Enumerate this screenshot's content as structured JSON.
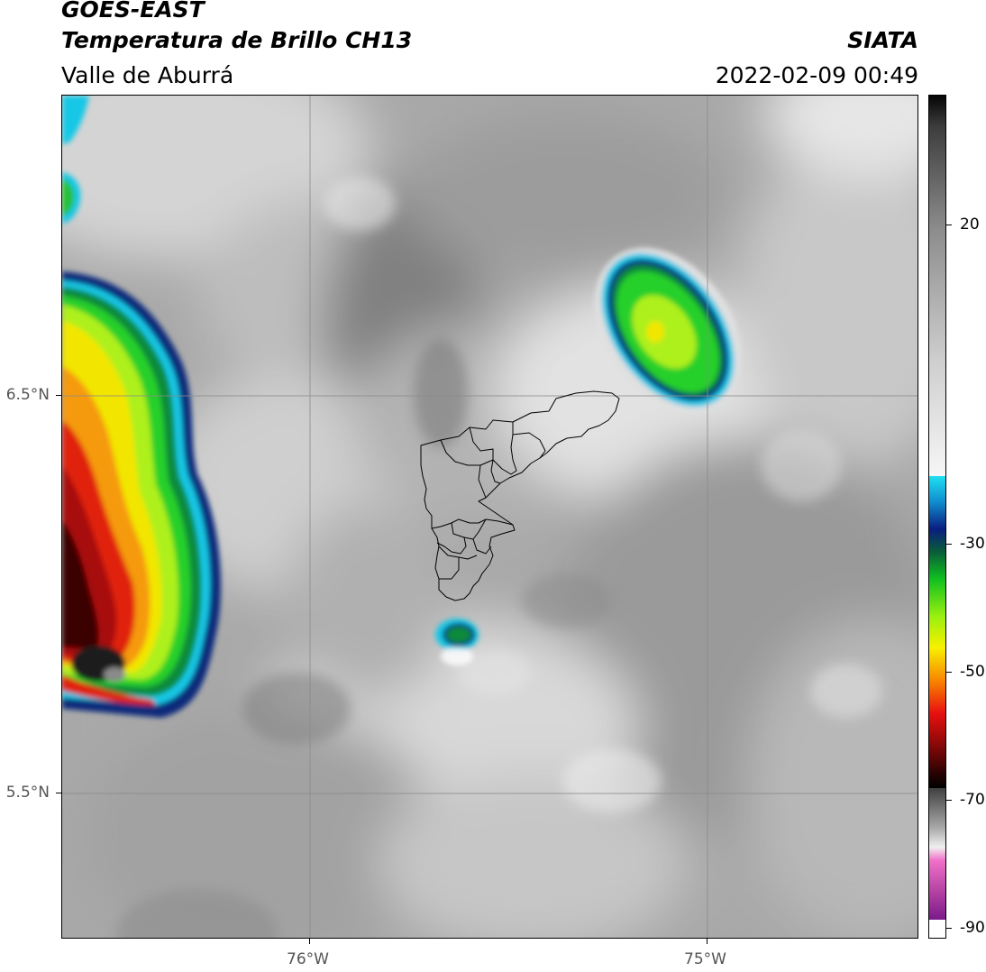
{
  "header": {
    "satellite": "GOES-EAST",
    "product": "Temperatura de Brillo CH13",
    "region": "Valle de Aburrá",
    "agency": "SIATA",
    "timestamp": "2022-02-09 00:49"
  },
  "map": {
    "lat_labels": [
      "6.5°N",
      "5.5°N"
    ],
    "lon_labels": [
      "76°W",
      "75°W"
    ]
  },
  "colorbar": {
    "tick_labels": [
      "20",
      "-30",
      "-50",
      "-70",
      "-90"
    ]
  }
}
